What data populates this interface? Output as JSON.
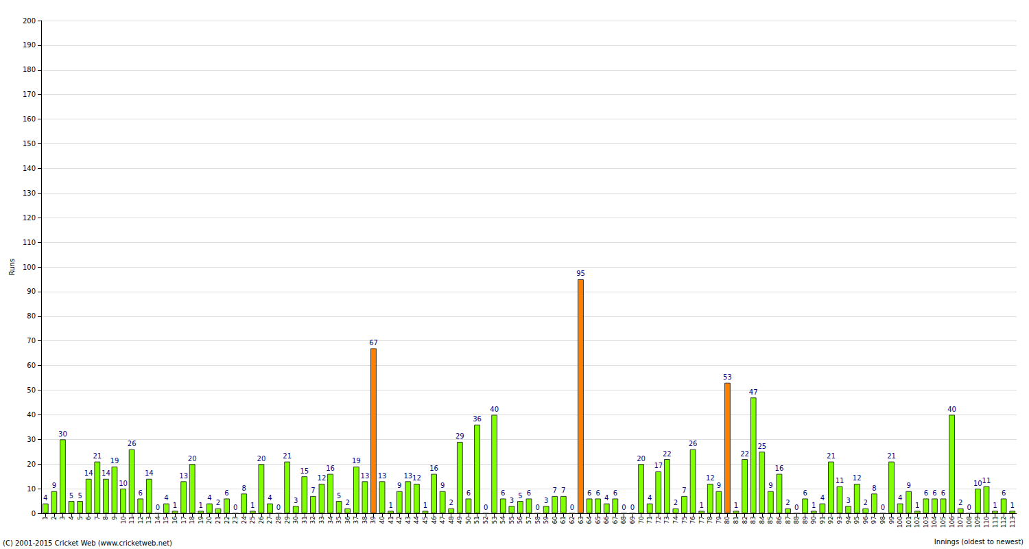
{
  "chart_data": {
    "type": "bar",
    "y_label": "Runs",
    "x_label": "Innings (oldest to newest)",
    "annotations": [
      "(C) 2001-2015 Cricket Web (www.cricketweb.net)"
    ],
    "categories": [
      "1",
      "2",
      "3",
      "4",
      "5",
      "6",
      "7",
      "8",
      "9",
      "10",
      "11",
      "12",
      "13",
      "14",
      "15",
      "16",
      "17",
      "18",
      "19",
      "20",
      "21",
      "22",
      "23",
      "24",
      "25",
      "26",
      "27",
      "28",
      "29",
      "30",
      "31",
      "32",
      "33",
      "34",
      "35",
      "36",
      "37",
      "38",
      "39",
      "40",
      "41",
      "42",
      "43",
      "44",
      "45",
      "46",
      "47",
      "48",
      "49",
      "50",
      "51",
      "52",
      "53",
      "54",
      "55",
      "56",
      "57",
      "58",
      "59",
      "60",
      "61",
      "62",
      "63",
      "64",
      "65",
      "66",
      "67",
      "68",
      "69",
      "70",
      "71",
      "72",
      "73",
      "74",
      "75",
      "76",
      "77",
      "78",
      "79",
      "80",
      "81",
      "82",
      "83",
      "84",
      "85",
      "86",
      "87",
      "88",
      "89",
      "90",
      "91",
      "92",
      "93",
      "94",
      "95",
      "96",
      "97",
      "98",
      "99",
      "100",
      "101",
      "102",
      "103",
      "104",
      "105",
      "106",
      "107",
      "108",
      "109",
      "110",
      "111",
      "112",
      "113"
    ],
    "values": [
      4,
      9,
      30,
      5,
      5,
      14,
      21,
      14,
      19,
      10,
      26,
      6,
      14,
      0,
      4,
      1,
      13,
      20,
      1,
      4,
      2,
      6,
      0,
      8,
      1,
      20,
      4,
      0,
      21,
      3,
      15,
      7,
      12,
      16,
      5,
      2,
      19,
      13,
      67,
      13,
      1,
      9,
      13,
      12,
      1,
      16,
      9,
      2,
      29,
      6,
      36,
      0,
      40,
      6,
      3,
      5,
      6,
      0,
      3,
      7,
      7,
      0,
      95,
      6,
      6,
      4,
      6,
      0,
      0,
      20,
      4,
      17,
      22,
      2,
      7,
      26,
      1,
      12,
      9,
      53,
      1,
      22,
      47,
      25,
      9,
      16,
      2,
      0,
      6,
      1,
      4,
      21,
      11,
      3,
      12,
      2,
      8,
      0,
      21,
      4,
      9,
      1,
      6,
      6,
      6,
      40,
      2,
      0,
      10,
      11,
      1,
      6,
      1
    ],
    "colors": [
      "#80ff00",
      "#80ff00",
      "#80ff00",
      "#80ff00",
      "#80ff00",
      "#80ff00",
      "#80ff00",
      "#80ff00",
      "#80ff00",
      "#80ff00",
      "#80ff00",
      "#80ff00",
      "#80ff00",
      "#80ff00",
      "#80ff00",
      "#80ff00",
      "#80ff00",
      "#80ff00",
      "#80ff00",
      "#80ff00",
      "#80ff00",
      "#80ff00",
      "#80ff00",
      "#80ff00",
      "#80ff00",
      "#80ff00",
      "#80ff00",
      "#80ff00",
      "#80ff00",
      "#80ff00",
      "#80ff00",
      "#80ff00",
      "#80ff00",
      "#80ff00",
      "#80ff00",
      "#80ff00",
      "#80ff00",
      "#80ff00",
      "#ff8000",
      "#80ff00",
      "#80ff00",
      "#80ff00",
      "#80ff00",
      "#80ff00",
      "#80ff00",
      "#80ff00",
      "#80ff00",
      "#80ff00",
      "#80ff00",
      "#80ff00",
      "#80ff00",
      "#80ff00",
      "#80ff00",
      "#80ff00",
      "#80ff00",
      "#80ff00",
      "#80ff00",
      "#80ff00",
      "#80ff00",
      "#80ff00",
      "#80ff00",
      "#80ff00",
      "#ff8000",
      "#80ff00",
      "#80ff00",
      "#80ff00",
      "#80ff00",
      "#80ff00",
      "#80ff00",
      "#80ff00",
      "#80ff00",
      "#80ff00",
      "#80ff00",
      "#80ff00",
      "#80ff00",
      "#80ff00",
      "#80ff00",
      "#80ff00",
      "#80ff00",
      "#ff8000",
      "#80ff00",
      "#80ff00",
      "#80ff00",
      "#80ff00",
      "#80ff00",
      "#80ff00",
      "#80ff00",
      "#80ff00",
      "#80ff00",
      "#80ff00",
      "#80ff00",
      "#80ff00",
      "#80ff00",
      "#80ff00",
      "#80ff00",
      "#80ff00",
      "#80ff00",
      "#80ff00",
      "#80ff00",
      "#80ff00",
      "#80ff00",
      "#80ff00",
      "#80ff00",
      "#80ff00",
      "#80ff00",
      "#80ff00",
      "#80ff00",
      "#80ff00",
      "#80ff00",
      "#80ff00",
      "#80ff00",
      "#80ff00",
      "#80ff00"
    ],
    "ylim": [
      0,
      200
    ],
    "yticks": [
      0,
      10,
      20,
      30,
      40,
      50,
      60,
      70,
      80,
      90,
      100,
      110,
      120,
      130,
      140,
      150,
      160,
      170,
      180,
      190,
      200
    ],
    "grid": true,
    "data_labels": true
  }
}
